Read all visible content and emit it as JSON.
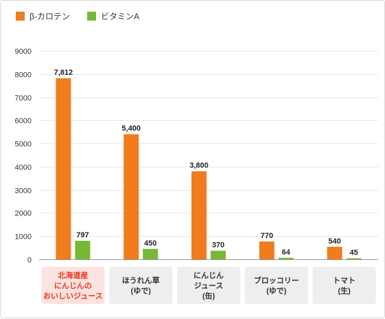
{
  "chart_data": {
    "type": "bar",
    "categories": [
      [
        "北海道産",
        "にんじんの",
        "おいしいジュース"
      ],
      [
        "ほうれん草",
        "(ゆで)"
      ],
      [
        "にんじん",
        "ジュース",
        "(缶)"
      ],
      [
        "ブロッコリー",
        "(ゆで)"
      ],
      [
        "トマト",
        "(生)"
      ]
    ],
    "highlight_index": 0,
    "series": [
      {
        "name": "β-カロテン",
        "color": "#f07c1d",
        "values": [
          7812,
          5400,
          3800,
          770,
          540
        ],
        "labels": [
          "7,812",
          "5,400",
          "3,800",
          "770",
          "540"
        ]
      },
      {
        "name": "ビタミンA",
        "color": "#77b837",
        "values": [
          797,
          450,
          370,
          64,
          45
        ],
        "labels": [
          "797",
          "450",
          "370",
          "64",
          "45"
        ]
      }
    ],
    "ylim": [
      0,
      9000
    ],
    "yticks": [
      "0",
      "1000",
      "2000",
      "3000",
      "4000",
      "5000",
      "6000",
      "7000",
      "8000",
      "9000"
    ],
    "grid": true,
    "legend": "top-left",
    "colors": {
      "grid": "#e6e6e6",
      "axis": "#999999",
      "category_bg": "#eeeeee",
      "category_text": "#333333",
      "highlight_bg": "#fde3df",
      "highlight_text": "#e8381a"
    }
  }
}
